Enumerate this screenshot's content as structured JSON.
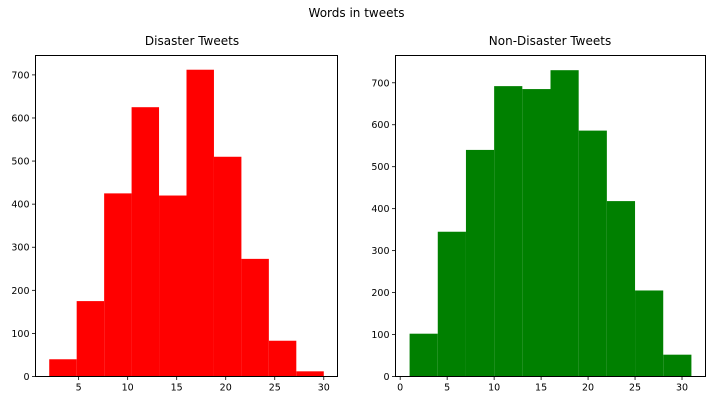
{
  "figure": {
    "suptitle": "Words in tweets"
  },
  "chart_data": [
    {
      "type": "bar",
      "subtype": "histogram",
      "title": "Disaster Tweets",
      "color": "#ff0000",
      "xlabel": "",
      "ylabel": "",
      "xlim": [
        0.6,
        31.4
      ],
      "ylim": [
        0,
        745
      ],
      "xticks": [
        5,
        10,
        15,
        20,
        25,
        30
      ],
      "yticks": [
        0,
        100,
        200,
        300,
        400,
        500,
        600,
        700
      ],
      "bins": [
        {
          "start": 2.0,
          "end": 4.8,
          "value": 40
        },
        {
          "start": 4.8,
          "end": 7.6,
          "value": 175
        },
        {
          "start": 7.6,
          "end": 10.4,
          "value": 425
        },
        {
          "start": 10.4,
          "end": 13.2,
          "value": 625
        },
        {
          "start": 13.2,
          "end": 16.0,
          "value": 420
        },
        {
          "start": 16.0,
          "end": 18.8,
          "value": 712
        },
        {
          "start": 18.8,
          "end": 21.6,
          "value": 510
        },
        {
          "start": 21.6,
          "end": 24.4,
          "value": 273
        },
        {
          "start": 24.4,
          "end": 27.2,
          "value": 83
        },
        {
          "start": 27.2,
          "end": 30.0,
          "value": 12
        }
      ]
    },
    {
      "type": "bar",
      "subtype": "histogram",
      "title": "Non-Disaster Tweets",
      "color": "#008000",
      "xlabel": "",
      "ylabel": "",
      "xlim": [
        -0.5,
        32.5
      ],
      "ylim": [
        0,
        765
      ],
      "xticks": [
        0,
        5,
        10,
        15,
        20,
        25,
        30
      ],
      "yticks": [
        0,
        100,
        200,
        300,
        400,
        500,
        600,
        700
      ],
      "bins": [
        {
          "start": 1.0,
          "end": 4.0,
          "value": 102
        },
        {
          "start": 4.0,
          "end": 7.0,
          "value": 345
        },
        {
          "start": 7.0,
          "end": 10.0,
          "value": 540
        },
        {
          "start": 10.0,
          "end": 13.0,
          "value": 692
        },
        {
          "start": 13.0,
          "end": 16.0,
          "value": 685
        },
        {
          "start": 16.0,
          "end": 19.0,
          "value": 730
        },
        {
          "start": 19.0,
          "end": 22.0,
          "value": 586
        },
        {
          "start": 22.0,
          "end": 25.0,
          "value": 418
        },
        {
          "start": 25.0,
          "end": 28.0,
          "value": 205
        },
        {
          "start": 28.0,
          "end": 31.0,
          "value": 52
        }
      ]
    }
  ]
}
